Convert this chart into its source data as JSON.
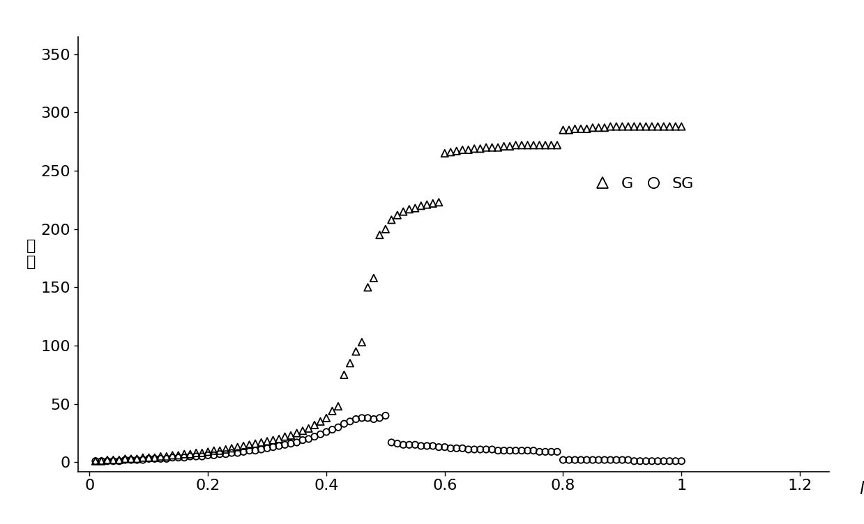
{
  "xlabel": "l",
  "ylabel_chars": [
    "规",
    "模"
  ],
  "xlim": [
    -0.02,
    1.25
  ],
  "ylim": [
    -8,
    365
  ],
  "xticks": [
    0,
    0.2,
    0.4,
    0.6,
    0.8,
    1.0,
    1.2
  ],
  "yticks": [
    0,
    50,
    100,
    150,
    200,
    250,
    300,
    350
  ],
  "G_color": "#000000",
  "SG_color": "#000000",
  "background_color": "#ffffff",
  "marker_size_G": 55,
  "marker_size_SG": 45,
  "G_data": [
    [
      0.01,
      1
    ],
    [
      0.02,
      1
    ],
    [
      0.03,
      2
    ],
    [
      0.04,
      2
    ],
    [
      0.05,
      2
    ],
    [
      0.06,
      3
    ],
    [
      0.07,
      3
    ],
    [
      0.08,
      3
    ],
    [
      0.09,
      4
    ],
    [
      0.1,
      4
    ],
    [
      0.11,
      4
    ],
    [
      0.12,
      5
    ],
    [
      0.13,
      5
    ],
    [
      0.14,
      6
    ],
    [
      0.15,
      6
    ],
    [
      0.16,
      7
    ],
    [
      0.17,
      7
    ],
    [
      0.18,
      8
    ],
    [
      0.19,
      8
    ],
    [
      0.2,
      9
    ],
    [
      0.21,
      10
    ],
    [
      0.22,
      10
    ],
    [
      0.23,
      11
    ],
    [
      0.24,
      12
    ],
    [
      0.25,
      13
    ],
    [
      0.26,
      14
    ],
    [
      0.27,
      15
    ],
    [
      0.28,
      16
    ],
    [
      0.29,
      17
    ],
    [
      0.3,
      18
    ],
    [
      0.31,
      19
    ],
    [
      0.32,
      20
    ],
    [
      0.33,
      22
    ],
    [
      0.34,
      23
    ],
    [
      0.35,
      25
    ],
    [
      0.36,
      27
    ],
    [
      0.37,
      29
    ],
    [
      0.38,
      32
    ],
    [
      0.39,
      35
    ],
    [
      0.4,
      38
    ],
    [
      0.41,
      44
    ],
    [
      0.42,
      48
    ],
    [
      0.43,
      75
    ],
    [
      0.44,
      85
    ],
    [
      0.45,
      95
    ],
    [
      0.46,
      103
    ],
    [
      0.47,
      150
    ],
    [
      0.48,
      158
    ],
    [
      0.49,
      195
    ],
    [
      0.5,
      200
    ],
    [
      0.51,
      208
    ],
    [
      0.52,
      212
    ],
    [
      0.53,
      215
    ],
    [
      0.54,
      217
    ],
    [
      0.55,
      218
    ],
    [
      0.56,
      220
    ],
    [
      0.57,
      221
    ],
    [
      0.58,
      222
    ],
    [
      0.59,
      223
    ],
    [
      0.6,
      265
    ],
    [
      0.61,
      266
    ],
    [
      0.62,
      267
    ],
    [
      0.63,
      268
    ],
    [
      0.64,
      268
    ],
    [
      0.65,
      269
    ],
    [
      0.66,
      269
    ],
    [
      0.67,
      270
    ],
    [
      0.68,
      270
    ],
    [
      0.69,
      270
    ],
    [
      0.7,
      271
    ],
    [
      0.71,
      271
    ],
    [
      0.72,
      272
    ],
    [
      0.73,
      272
    ],
    [
      0.74,
      272
    ],
    [
      0.75,
      272
    ],
    [
      0.76,
      272
    ],
    [
      0.77,
      272
    ],
    [
      0.78,
      272
    ],
    [
      0.79,
      272
    ],
    [
      0.8,
      285
    ],
    [
      0.81,
      285
    ],
    [
      0.82,
      286
    ],
    [
      0.83,
      286
    ],
    [
      0.84,
      286
    ],
    [
      0.85,
      287
    ],
    [
      0.86,
      287
    ],
    [
      0.87,
      287
    ],
    [
      0.88,
      288
    ],
    [
      0.89,
      288
    ],
    [
      0.9,
      288
    ],
    [
      0.91,
      288
    ],
    [
      0.92,
      288
    ],
    [
      0.93,
      288
    ],
    [
      0.94,
      288
    ],
    [
      0.95,
      288
    ],
    [
      0.96,
      288
    ],
    [
      0.97,
      288
    ],
    [
      0.98,
      288
    ],
    [
      0.99,
      288
    ],
    [
      1.0,
      288
    ]
  ],
  "SG_data": [
    [
      0.01,
      1
    ],
    [
      0.02,
      1
    ],
    [
      0.03,
      1
    ],
    [
      0.04,
      1
    ],
    [
      0.05,
      1
    ],
    [
      0.06,
      2
    ],
    [
      0.07,
      2
    ],
    [
      0.08,
      2
    ],
    [
      0.09,
      2
    ],
    [
      0.1,
      3
    ],
    [
      0.11,
      3
    ],
    [
      0.12,
      3
    ],
    [
      0.13,
      3
    ],
    [
      0.14,
      4
    ],
    [
      0.15,
      4
    ],
    [
      0.16,
      4
    ],
    [
      0.17,
      5
    ],
    [
      0.18,
      5
    ],
    [
      0.19,
      5
    ],
    [
      0.2,
      6
    ],
    [
      0.21,
      6
    ],
    [
      0.22,
      7
    ],
    [
      0.23,
      7
    ],
    [
      0.24,
      8
    ],
    [
      0.25,
      8
    ],
    [
      0.26,
      9
    ],
    [
      0.27,
      10
    ],
    [
      0.28,
      10
    ],
    [
      0.29,
      11
    ],
    [
      0.3,
      12
    ],
    [
      0.31,
      13
    ],
    [
      0.32,
      14
    ],
    [
      0.33,
      15
    ],
    [
      0.34,
      16
    ],
    [
      0.35,
      17
    ],
    [
      0.36,
      19
    ],
    [
      0.37,
      20
    ],
    [
      0.38,
      22
    ],
    [
      0.39,
      24
    ],
    [
      0.4,
      26
    ],
    [
      0.41,
      28
    ],
    [
      0.42,
      30
    ],
    [
      0.43,
      33
    ],
    [
      0.44,
      35
    ],
    [
      0.45,
      37
    ],
    [
      0.46,
      38
    ],
    [
      0.47,
      38
    ],
    [
      0.48,
      37
    ],
    [
      0.49,
      38
    ],
    [
      0.5,
      40
    ],
    [
      0.51,
      17
    ],
    [
      0.52,
      16
    ],
    [
      0.53,
      15
    ],
    [
      0.54,
      15
    ],
    [
      0.55,
      15
    ],
    [
      0.56,
      14
    ],
    [
      0.57,
      14
    ],
    [
      0.58,
      14
    ],
    [
      0.59,
      13
    ],
    [
      0.6,
      13
    ],
    [
      0.61,
      12
    ],
    [
      0.62,
      12
    ],
    [
      0.63,
      12
    ],
    [
      0.64,
      11
    ],
    [
      0.65,
      11
    ],
    [
      0.66,
      11
    ],
    [
      0.67,
      11
    ],
    [
      0.68,
      11
    ],
    [
      0.69,
      10
    ],
    [
      0.7,
      10
    ],
    [
      0.71,
      10
    ],
    [
      0.72,
      10
    ],
    [
      0.73,
      10
    ],
    [
      0.74,
      10
    ],
    [
      0.75,
      10
    ],
    [
      0.76,
      9
    ],
    [
      0.77,
      9
    ],
    [
      0.78,
      9
    ],
    [
      0.79,
      9
    ],
    [
      0.8,
      2
    ],
    [
      0.81,
      2
    ],
    [
      0.82,
      2
    ],
    [
      0.83,
      2
    ],
    [
      0.84,
      2
    ],
    [
      0.85,
      2
    ],
    [
      0.86,
      2
    ],
    [
      0.87,
      2
    ],
    [
      0.88,
      2
    ],
    [
      0.89,
      2
    ],
    [
      0.9,
      2
    ],
    [
      0.91,
      2
    ],
    [
      0.92,
      1
    ],
    [
      0.93,
      1
    ],
    [
      0.94,
      1
    ],
    [
      0.95,
      1
    ],
    [
      0.96,
      1
    ],
    [
      0.97,
      1
    ],
    [
      0.98,
      1
    ],
    [
      0.99,
      1
    ],
    [
      1.0,
      1
    ]
  ]
}
